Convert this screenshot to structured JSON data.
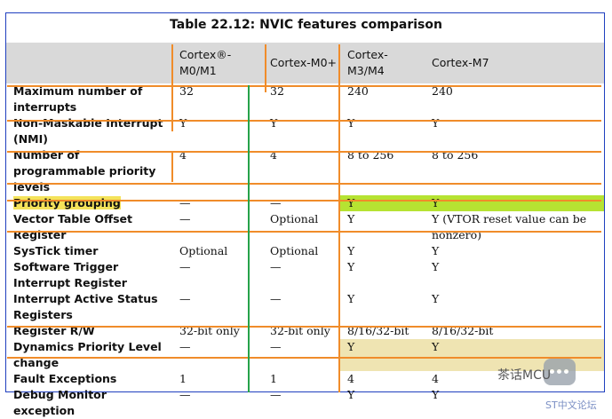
{
  "table": {
    "title": "Table 22.12: NVIC features comparison",
    "headers": [
      "",
      "Cortex®-M0/M1",
      "Cortex-M0+",
      "Cortex-M3/M4",
      "Cortex-M7"
    ],
    "rows": [
      [
        "Maximum number of interrupts",
        "32",
        "32",
        "240",
        "240"
      ],
      [
        "Non-Maskable Interrupt (NMI)",
        "Y",
        "Y",
        "Y",
        "Y"
      ],
      [
        "Number of programmable priority levels",
        "4",
        "4",
        "8 to 256",
        "8 to 256"
      ],
      [
        "Priority grouping",
        "—",
        "—",
        "Y",
        "Y"
      ],
      [
        "Vector Table Offset Register",
        "—",
        "Optional",
        "Y",
        "Y (VTOR reset value can be nonzero)"
      ],
      [
        "SysTick timer",
        "Optional",
        "Optional",
        "Y",
        "Y"
      ],
      [
        "Software Trigger Interrupt Register",
        "—",
        "—",
        "Y",
        "Y"
      ],
      [
        "Interrupt Active Status Registers",
        "—",
        "—",
        "Y",
        "Y"
      ],
      [
        "Register R/W",
        "32-bit only",
        "32-bit only",
        "8/16/32-bit",
        "8/16/32-bit"
      ],
      [
        "Dynamics Priority Level change",
        "—",
        "—",
        "Y",
        "Y"
      ],
      [
        "Fault Exceptions",
        "1",
        "1",
        "4",
        "4"
      ],
      [
        "Debug Monitor exception",
        "—",
        "—",
        "Y",
        "Y"
      ]
    ]
  },
  "watermark": {
    "brand": "茶话MCU",
    "forum": "ST中文论坛"
  },
  "colors": {
    "annotation_orange": "#f08c2a",
    "annotation_green": "#26a34a",
    "highlight_green": "#b6e332",
    "highlight_tan": "#efe4b2",
    "text_highlight": "#f4e35a",
    "frame_blue": "#1f3fbf",
    "header_gray": "#d9d9d9"
  }
}
